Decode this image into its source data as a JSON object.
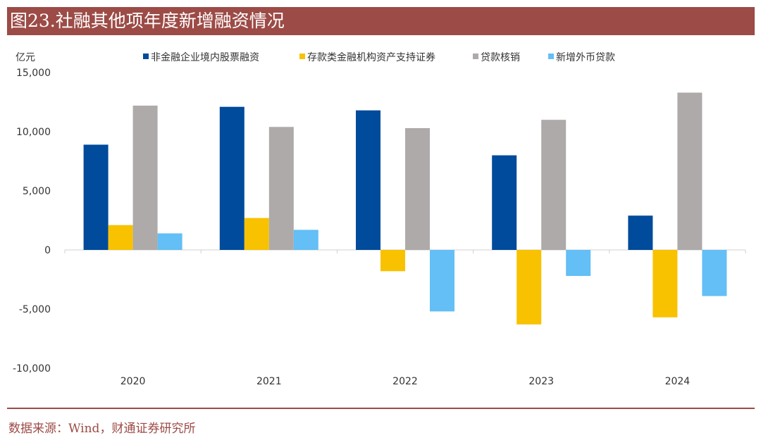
{
  "title": "图23.社融其他项年度新增融资情况",
  "source": "数据来源：Wind，财通证券研究所",
  "chart_data": {
    "type": "bar",
    "ylabel": "亿元",
    "ylim": [
      -10000,
      15000
    ],
    "yticks": [
      15000,
      10000,
      5000,
      0,
      -5000,
      -10000
    ],
    "ytick_labels": [
      "15,000",
      "10,000",
      "5,000",
      "0",
      "-5,000",
      "-10,000"
    ],
    "grid": false,
    "legend": "top",
    "categories": [
      "2020",
      "2021",
      "2022",
      "2023",
      "2024"
    ],
    "series": [
      {
        "name": "非金融企业境内股票融资",
        "color": "#004b9b",
        "values": [
          8900,
          12100,
          11800,
          8000,
          2900
        ]
      },
      {
        "name": "存款类金融机构资产支持证券",
        "color": "#f8c200",
        "values": [
          2100,
          2700,
          -1800,
          -6300,
          -5700
        ]
      },
      {
        "name": "贷款核销",
        "color": "#aeaaa9",
        "values": [
          12200,
          10400,
          10300,
          11000,
          13300
        ]
      },
      {
        "name": "新增外币贷款",
        "color": "#63bff5",
        "values": [
          1400,
          1700,
          -5200,
          -2200,
          -3900
        ]
      }
    ]
  }
}
